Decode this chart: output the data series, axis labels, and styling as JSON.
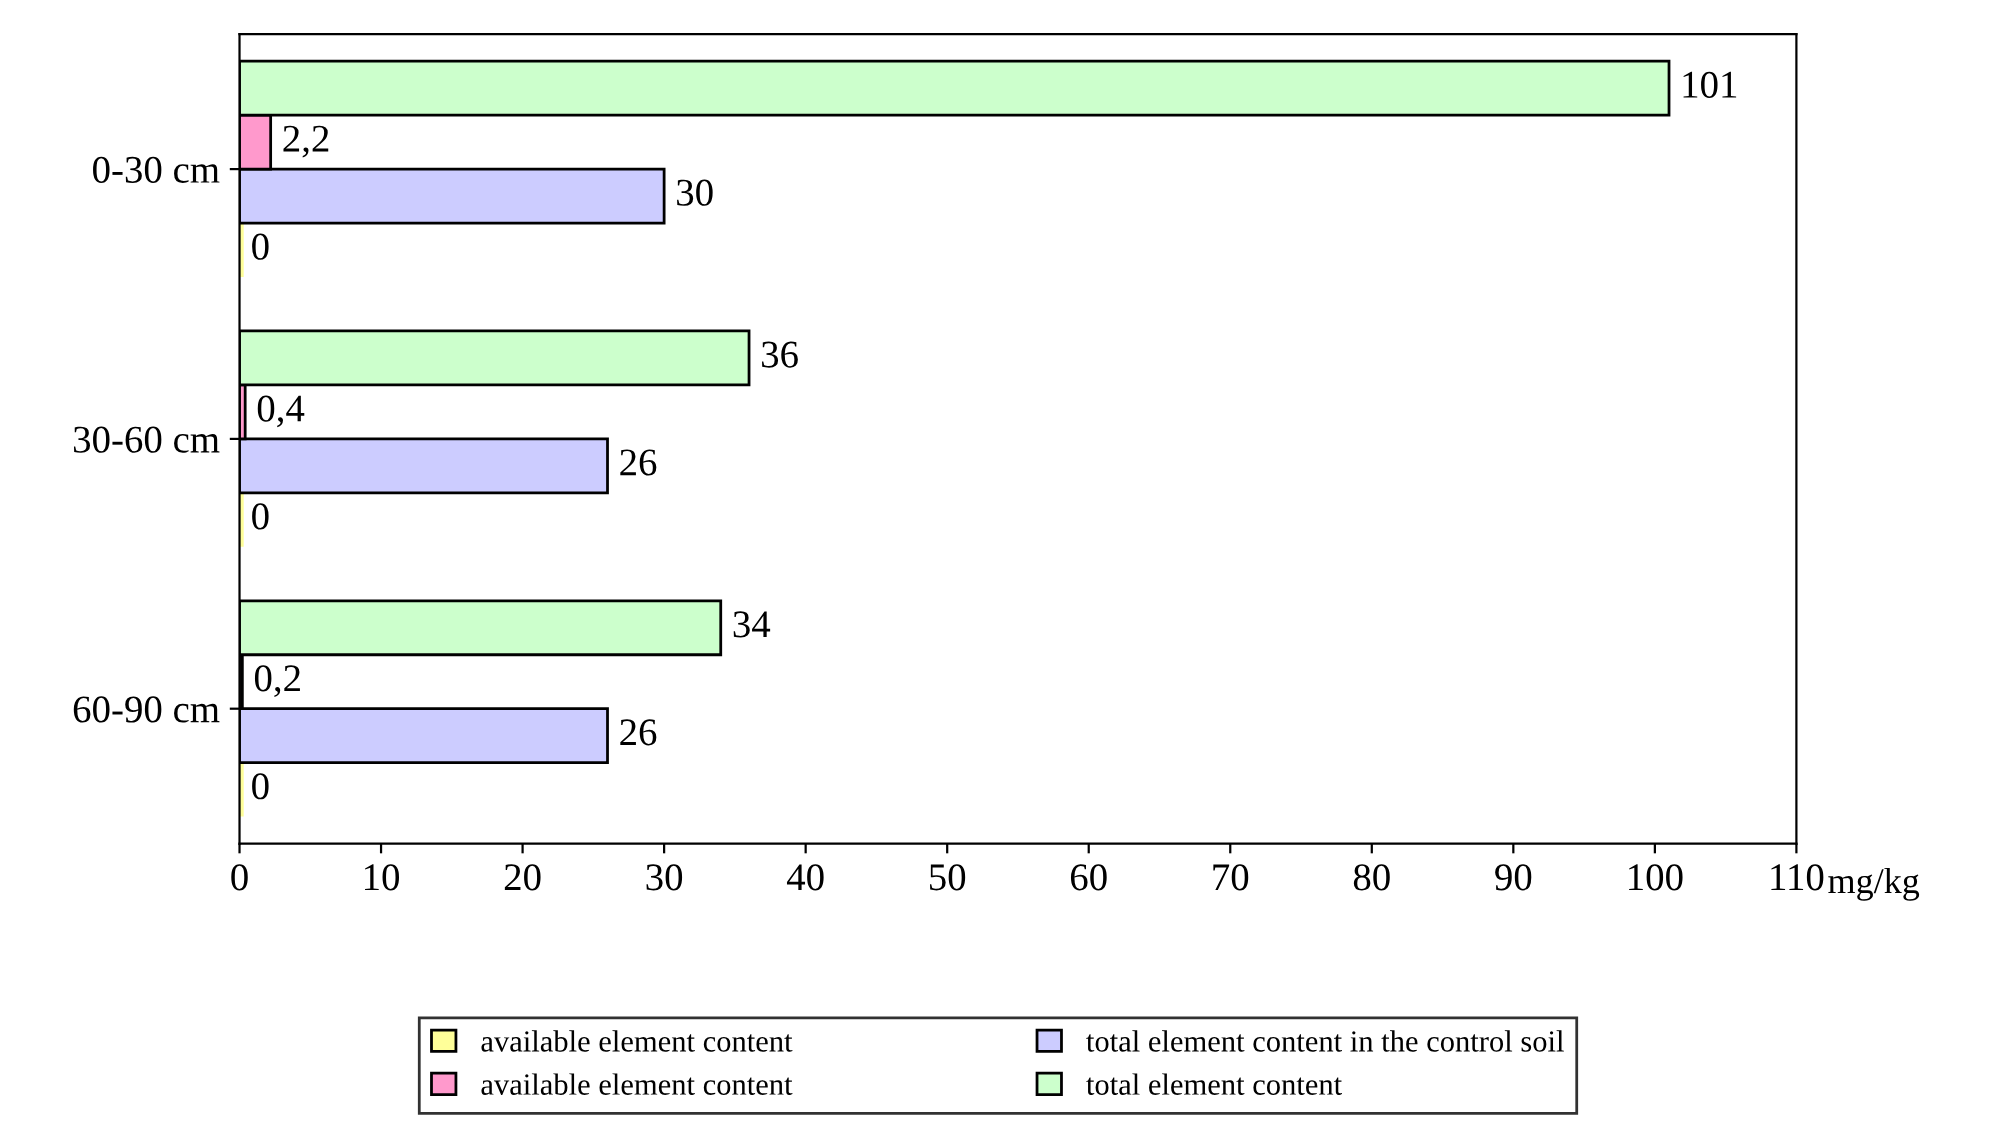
{
  "chart_data": {
    "type": "bar",
    "orientation": "horizontal",
    "categories": [
      "0-30 cm",
      "30-60 cm",
      "60-90 cm"
    ],
    "series": [
      {
        "name": "available element content",
        "color": "#ffff99",
        "values": [
          0,
          0,
          0
        ],
        "value_labels": [
          "0",
          "0",
          "0"
        ]
      },
      {
        "name": "total element content in the control soil",
        "color": "#ccccff",
        "values": [
          30,
          26,
          26
        ],
        "value_labels": [
          "30",
          "26",
          "26"
        ]
      },
      {
        "name": "available element content",
        "color": "#ff99cc",
        "values": [
          2.2,
          0.4,
          0.2
        ],
        "value_labels": [
          "2,2",
          "0,4",
          "0,2"
        ]
      },
      {
        "name": "total element content",
        "color": "#ccffcc",
        "values": [
          101,
          36,
          34
        ],
        "value_labels": [
          "101",
          "36",
          "34"
        ]
      }
    ],
    "xlabel": "mg/kg",
    "xlim": [
      0,
      110
    ],
    "xticks": [
      0,
      10,
      20,
      30,
      40,
      50,
      60,
      70,
      80,
      90,
      100,
      110
    ],
    "grid": false,
    "legend": "bottom"
  }
}
